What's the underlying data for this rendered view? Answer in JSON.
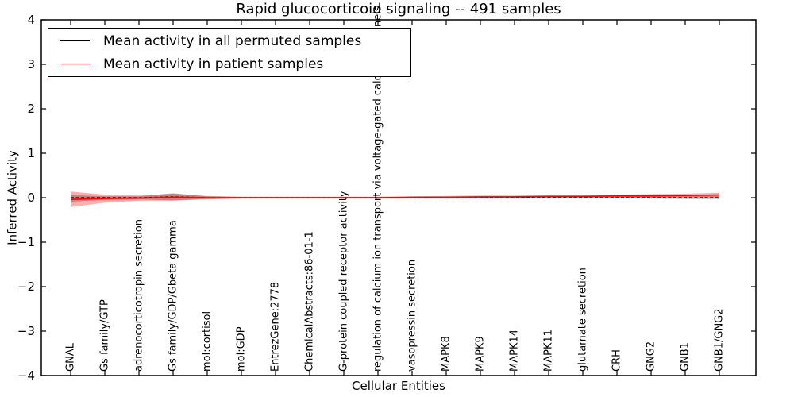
{
  "title": "Rapid glucocorticoid signaling -- 491 samples",
  "axis": {
    "xlabel": "Cellular Entities",
    "ylabel": "Inferred Activity",
    "yticks": [
      "4",
      "3",
      "2",
      "1",
      "0",
      "−1",
      "−2",
      "−3",
      "−4"
    ]
  },
  "legend": {
    "items": [
      {
        "label": "Mean activity in all permuted samples",
        "color": "#000000"
      },
      {
        "label": "Mean activity in patient samples",
        "color": "#ff0000"
      }
    ]
  },
  "chart_data": {
    "type": "line",
    "title": "Rapid glucocorticoid signaling -- 491 samples",
    "xlabel": "Cellular Entities",
    "ylabel": "Inferred Activity",
    "ylim": [
      -4,
      4
    ],
    "grid": false,
    "legend_position": "upper left",
    "categories": [
      "GNAL",
      "Gs family/GTP",
      "adrenocorticotropin secretion",
      "Gs family/GDP/Gbeta gamma",
      "mol:cortisol",
      "mol:GDP",
      "EntrezGene:2778",
      "ChemicalAbstracts:86-01-1",
      "G-protein coupled receptor activity",
      "regulation of calcium ion transport via voltage-gated calcium channels",
      "vasopressin secretion",
      "MAPK8",
      "MAPK9",
      "MAPK14",
      "MAPK11",
      "glutamate secretion",
      "CRH",
      "GNG2",
      "GNB1",
      "GNB1/GNG2"
    ],
    "series": [
      {
        "name": "Mean activity in all permuted samples",
        "color": "#000000",
        "line_style": "dashed",
        "values": [
          0,
          0,
          0,
          0.02,
          0,
          0,
          0,
          0,
          0,
          0,
          0,
          0,
          0,
          0,
          0,
          0,
          0,
          0,
          0,
          0
        ],
        "band_upper": [
          0.06,
          0.03,
          0.03,
          0.1,
          0.03,
          0.02,
          0.02,
          0.02,
          0.02,
          0.02,
          0.02,
          0.02,
          0.02,
          0.03,
          0.03,
          0.03,
          0.03,
          0.03,
          0.04,
          0.04
        ],
        "band_lower": [
          -0.09,
          -0.05,
          -0.04,
          -0.06,
          -0.03,
          -0.02,
          -0.02,
          -0.02,
          -0.02,
          -0.02,
          -0.02,
          -0.02,
          -0.02,
          -0.02,
          -0.02,
          -0.02,
          -0.02,
          -0.02,
          -0.03,
          -0.03
        ],
        "band_color": "rgba(40,40,40,0.30)"
      },
      {
        "name": "Mean activity in patient samples",
        "color": "#ff0000",
        "line_style": "solid",
        "values": [
          -0.04,
          -0.02,
          -0.01,
          0.01,
          0,
          0,
          0,
          0,
          0,
          0,
          0.01,
          0.01,
          0.02,
          0.02,
          0.03,
          0.03,
          0.04,
          0.04,
          0.05,
          0.06
        ],
        "band_upper": [
          0.14,
          0.07,
          0.05,
          0.09,
          0.04,
          0.02,
          0.02,
          0.02,
          0.02,
          0.02,
          0.03,
          0.04,
          0.05,
          0.05,
          0.06,
          0.07,
          0.07,
          0.08,
          0.09,
          0.11
        ],
        "band_lower": [
          -0.21,
          -0.11,
          -0.07,
          -0.07,
          -0.04,
          -0.02,
          -0.02,
          -0.02,
          -0.02,
          -0.02,
          -0.02,
          -0.02,
          -0.01,
          -0.01,
          -0.01,
          -0.01,
          0,
          0,
          0.01,
          0.01
        ],
        "band_color": "rgba(255,0,0,0.32)"
      }
    ]
  }
}
